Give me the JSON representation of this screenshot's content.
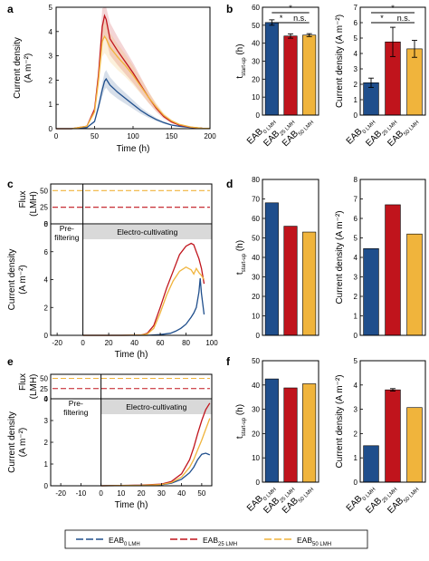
{
  "colors": {
    "eab0": "#1f4e8c",
    "eab25": "#c0141c",
    "eab50": "#f0b43c",
    "band": "#d9d9d9"
  },
  "panel_letters": [
    "a",
    "b",
    "c",
    "d",
    "e",
    "f"
  ],
  "legend": {
    "entries": [
      {
        "main": "EAB",
        "sub": "0 LMH"
      },
      {
        "main": "EAB",
        "sub": "25 LMH"
      },
      {
        "main": "EAB",
        "sub": "50 LMH"
      }
    ]
  },
  "chart_data": [
    {
      "id": "a",
      "type": "line",
      "xlabel": "Time (h)",
      "ylabel_lines": [
        "Current density",
        "(A m⁻²)"
      ],
      "xlim": [
        0,
        200
      ],
      "ylim": [
        0,
        5
      ],
      "xticks": [
        0,
        50,
        100,
        150,
        200
      ],
      "yticks": [
        0,
        1,
        2,
        3,
        4,
        5
      ],
      "series": [
        {
          "key": "eab0",
          "x": [
            0,
            20,
            40,
            50,
            55,
            60,
            63,
            65,
            70,
            80,
            90,
            100,
            110,
            120,
            130,
            140,
            150,
            160,
            175,
            190,
            200
          ],
          "y": [
            0,
            0,
            0.05,
            0.3,
            0.9,
            1.6,
            1.95,
            2.05,
            1.8,
            1.5,
            1.25,
            1.0,
            0.75,
            0.55,
            0.38,
            0.25,
            0.15,
            0.1,
            0.05,
            0.02,
            0.01
          ]
        },
        {
          "key": "eab25",
          "x": [
            0,
            20,
            40,
            50,
            55,
            60,
            63,
            65,
            70,
            80,
            90,
            100,
            110,
            120,
            130,
            140,
            150,
            160,
            175,
            190,
            200
          ],
          "y": [
            0,
            0,
            0.1,
            0.8,
            2.2,
            4.2,
            4.65,
            4.5,
            3.7,
            3.2,
            2.75,
            2.3,
            1.8,
            1.3,
            0.85,
            0.5,
            0.28,
            0.15,
            0.06,
            0.02,
            0.01
          ]
        },
        {
          "key": "eab50",
          "x": [
            0,
            20,
            40,
            50,
            55,
            60,
            63,
            65,
            70,
            80,
            90,
            100,
            110,
            120,
            130,
            140,
            150,
            160,
            175,
            190,
            200
          ],
          "y": [
            0,
            0,
            0.1,
            0.7,
            2.0,
            3.6,
            3.8,
            3.7,
            3.35,
            2.95,
            2.6,
            2.2,
            1.75,
            1.3,
            0.9,
            0.55,
            0.32,
            0.18,
            0.07,
            0.02,
            0.01
          ]
        }
      ]
    },
    {
      "id": "b",
      "type": "bar",
      "categories": [
        {
          "main": "EAB",
          "sub": "0 LMH"
        },
        {
          "main": "EAB",
          "sub": "25 LMH"
        },
        {
          "main": "EAB",
          "sub": "50 LMH"
        }
      ],
      "subplots": [
        {
          "ylabel_main": "t",
          "ylabel_sub": "start-up",
          "ylabel_tail": " (h)",
          "ylim": [
            0,
            60
          ],
          "yticks": [
            0,
            10,
            20,
            30,
            40,
            50,
            60
          ],
          "values": [
            51.5,
            44.0,
            44.5
          ],
          "errors": [
            1.5,
            1.2,
            0.8
          ],
          "significance": [
            {
              "from": 0,
              "to": 2,
              "label": "*",
              "level": 2
            },
            {
              "from": 0,
              "to": 1,
              "label": "*",
              "level": 1
            },
            {
              "from": 1,
              "to": 2,
              "label": "n.s.",
              "level": 1
            }
          ]
        },
        {
          "ylabel_main": "Current density (A m⁻²)",
          "ylim": [
            0,
            7
          ],
          "yticks": [
            0,
            1,
            2,
            3,
            4,
            5,
            6,
            7
          ],
          "values": [
            2.1,
            4.75,
            4.3
          ],
          "errors": [
            0.3,
            0.95,
            0.55
          ],
          "significance": [
            {
              "from": 0,
              "to": 2,
              "label": "*",
              "level": 2
            },
            {
              "from": 0,
              "to": 1,
              "label": "*",
              "level": 1
            },
            {
              "from": 1,
              "to": 2,
              "label": "n.s.",
              "level": 1
            }
          ]
        }
      ]
    },
    {
      "id": "c",
      "type": "line",
      "xlabel": "Time (h)",
      "flux_ylabel_lines": [
        "Flux",
        "(LMH)"
      ],
      "flux_ylim": [
        0,
        60
      ],
      "flux_yticks": [
        0,
        25,
        50
      ],
      "flux_levels": [
        {
          "key": "eab0",
          "y": 0
        },
        {
          "key": "eab25",
          "y": 25
        },
        {
          "key": "eab50",
          "y": 50
        }
      ],
      "ylabel_lines": [
        "Current density",
        "(A m⁻²)"
      ],
      "ylim": [
        0,
        8
      ],
      "yticks": [
        0,
        2,
        4,
        6,
        8
      ],
      "xlim": [
        -25,
        100
      ],
      "xticks": [
        -20,
        0,
        20,
        40,
        60,
        80,
        100
      ],
      "phase_labels": {
        "pre": [
          "Pre-",
          "filtering"
        ],
        "main": "Electro-cultivating"
      },
      "series": [
        {
          "key": "eab0",
          "x": [
            0,
            30,
            50,
            60,
            68,
            72,
            76,
            80,
            84,
            86,
            88,
            90,
            91,
            92,
            94
          ],
          "y": [
            0,
            0,
            0,
            0.05,
            0.15,
            0.3,
            0.5,
            0.8,
            1.3,
            1.6,
            2.0,
            3.1,
            4.1,
            3.0,
            1.5
          ]
        },
        {
          "key": "eab25",
          "x": [
            0,
            30,
            45,
            50,
            55,
            60,
            65,
            70,
            75,
            80,
            84,
            86,
            88,
            90,
            92,
            94
          ],
          "y": [
            0,
            0,
            0.02,
            0.15,
            0.7,
            2.0,
            3.4,
            4.6,
            5.8,
            6.4,
            6.6,
            6.5,
            6.0,
            5.5,
            4.8,
            3.7
          ]
        },
        {
          "key": "eab50",
          "x": [
            0,
            30,
            45,
            50,
            55,
            60,
            65,
            70,
            75,
            80,
            84,
            86,
            88,
            90,
            92,
            94
          ],
          "y": [
            0,
            0,
            0.02,
            0.1,
            0.5,
            1.6,
            2.9,
            3.9,
            4.6,
            4.9,
            4.7,
            4.4,
            4.8,
            4.5,
            4.3,
            4.0
          ]
        }
      ]
    },
    {
      "id": "d",
      "type": "bar",
      "categories": [
        {
          "main": "EAB",
          "sub": "0 LMH"
        },
        {
          "main": "EAB",
          "sub": "25 LMH"
        },
        {
          "main": "EAB",
          "sub": "50 LMH"
        }
      ],
      "subplots": [
        {
          "ylabel_main": "t",
          "ylabel_sub": "start-up",
          "ylabel_tail": " (h)",
          "ylim": [
            0,
            80
          ],
          "yticks": [
            0,
            10,
            20,
            30,
            40,
            50,
            60,
            70,
            80
          ],
          "values": [
            68,
            56,
            53
          ]
        },
        {
          "ylabel_main": "Current density (A m⁻²)",
          "ylim": [
            0,
            8
          ],
          "yticks": [
            0,
            1,
            2,
            3,
            4,
            5,
            6,
            7,
            8
          ],
          "values": [
            4.45,
            6.7,
            5.2
          ]
        }
      ]
    },
    {
      "id": "e",
      "type": "line",
      "xlabel": "Time (h)",
      "flux_ylabel_lines": [
        "Flux",
        "(LMH)"
      ],
      "flux_ylim": [
        0,
        60
      ],
      "flux_yticks": [
        0,
        25,
        50
      ],
      "flux_levels": [
        {
          "key": "eab0",
          "y": 0
        },
        {
          "key": "eab25",
          "y": 25
        },
        {
          "key": "eab50",
          "y": 50
        }
      ],
      "ylabel_lines": [
        "Current density",
        "(A m⁻²)"
      ],
      "ylim": [
        0,
        4
      ],
      "yticks": [
        0,
        1,
        2,
        3,
        4
      ],
      "xlim": [
        -25,
        55
      ],
      "xticks": [
        -20,
        -10,
        0,
        10,
        20,
        30,
        40,
        50
      ],
      "phase_labels": {
        "pre": [
          "Pre-",
          "filtering"
        ],
        "main": "Electro-cultivating"
      },
      "series": [
        {
          "key": "eab0",
          "x": [
            0,
            20,
            30,
            35,
            40,
            44,
            46,
            48,
            50,
            52,
            54
          ],
          "y": [
            0,
            0.02,
            0.05,
            0.12,
            0.3,
            0.6,
            0.85,
            1.2,
            1.45,
            1.5,
            1.42
          ]
        },
        {
          "key": "eab25",
          "x": [
            0,
            20,
            30,
            35,
            40,
            44,
            46,
            48,
            50,
            52,
            54
          ],
          "y": [
            0,
            0.03,
            0.08,
            0.2,
            0.55,
            1.2,
            1.75,
            2.4,
            3.0,
            3.5,
            3.8
          ]
        },
        {
          "key": "eab50",
          "x": [
            0,
            20,
            30,
            35,
            40,
            44,
            46,
            48,
            50,
            52,
            54
          ],
          "y": [
            0,
            0.02,
            0.06,
            0.15,
            0.4,
            0.85,
            1.2,
            1.65,
            2.1,
            2.6,
            3.1
          ]
        }
      ]
    },
    {
      "id": "f",
      "type": "bar",
      "categories": [
        {
          "main": "EAB",
          "sub": "0 LMH"
        },
        {
          "main": "EAB",
          "sub": "25 LMH"
        },
        {
          "main": "EAB",
          "sub": "50 LMH"
        }
      ],
      "subplots": [
        {
          "ylabel_main": "t",
          "ylabel_sub": "start-up",
          "ylabel_tail": " (h)",
          "ylim": [
            0,
            50
          ],
          "yticks": [
            0,
            10,
            20,
            30,
            40,
            50
          ],
          "values": [
            42.5,
            38.8,
            40.5
          ]
        },
        {
          "ylabel_main": "Current density (A m⁻²)",
          "ylim": [
            0,
            5
          ],
          "yticks": [
            0,
            1,
            2,
            3,
            4,
            5
          ],
          "values": [
            1.5,
            3.8,
            3.07
          ],
          "errors": [
            0,
            0.05,
            0
          ]
        }
      ]
    }
  ]
}
